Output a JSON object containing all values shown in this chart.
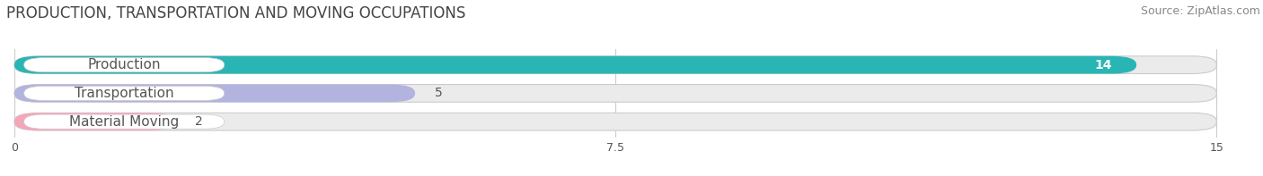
{
  "title": "PRODUCTION, TRANSPORTATION AND MOVING OCCUPATIONS",
  "source": "Source: ZipAtlas.com",
  "categories": [
    "Production",
    "Transportation",
    "Material Moving"
  ],
  "values": [
    14,
    5,
    2
  ],
  "bar_colors": [
    "#2ab5b5",
    "#b3b3e0",
    "#f4a7b9"
  ],
  "xlim_max": 15,
  "xticks": [
    0,
    7.5,
    15
  ],
  "title_fontsize": 12,
  "source_fontsize": 9,
  "label_fontsize": 11,
  "value_fontsize": 10,
  "bar_height": 0.62,
  "bg_color": "#ffffff",
  "bar_bg_color": "#ebebeb",
  "label_bg_color": "#ffffff",
  "grid_color": "#cccccc",
  "text_color": "#555555",
  "title_color": "#444444"
}
